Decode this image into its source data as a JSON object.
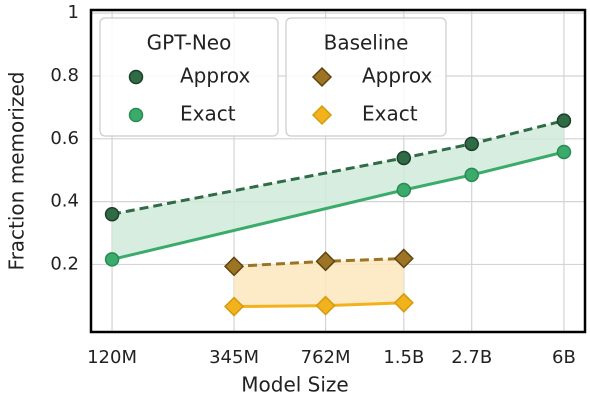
{
  "chart_data": {
    "type": "line",
    "xlabel": "Model Size",
    "ylabel": "Fraction memorized",
    "xscale": "log",
    "xlim": [
      100000000,
      7200000000
    ],
    "xticks": [
      {
        "value": 120000000,
        "label": "120M"
      },
      {
        "value": 345000000,
        "label": "345M"
      },
      {
        "value": 762000000,
        "label": "762M"
      },
      {
        "value": 1500000000,
        "label": "1.5B"
      },
      {
        "value": 2700000000,
        "label": "2.7B"
      },
      {
        "value": 6000000000,
        "label": "6B"
      }
    ],
    "ylim": [
      -0.015,
      1.01
    ],
    "yticks": [
      0.2,
      0.4,
      0.6,
      0.8,
      1
    ],
    "grid": true,
    "legend": "upper left",
    "series": [
      {
        "name": "Approx",
        "group": "GPT-Neo",
        "color": "#2f6b45",
        "marker": "circle",
        "dash": true,
        "fill": "#cfeada",
        "x": [
          120000000,
          1500000000,
          2700000000,
          6000000000
        ],
        "values": [
          0.36,
          0.539,
          0.584,
          0.658
        ]
      },
      {
        "name": "Exact",
        "group": "GPT-Neo",
        "color": "#3aab6a",
        "marker": "circle",
        "dash": false,
        "x": [
          120000000,
          1500000000,
          2700000000,
          6000000000
        ],
        "values": [
          0.216,
          0.437,
          0.485,
          0.558
        ]
      },
      {
        "name": "Approx",
        "group": "Baseline",
        "color": "#9c7424",
        "marker": "diamond",
        "dash": true,
        "fill": "#fde8bd",
        "x": [
          345000000,
          762000000,
          1500000000
        ],
        "values": [
          0.194,
          0.21,
          0.219
        ]
      },
      {
        "name": "Exact",
        "group": "Baseline",
        "color": "#f2b21c",
        "marker": "diamond",
        "dash": false,
        "x": [
          345000000,
          762000000,
          1500000000
        ],
        "values": [
          0.066,
          0.069,
          0.078
        ]
      }
    ]
  }
}
